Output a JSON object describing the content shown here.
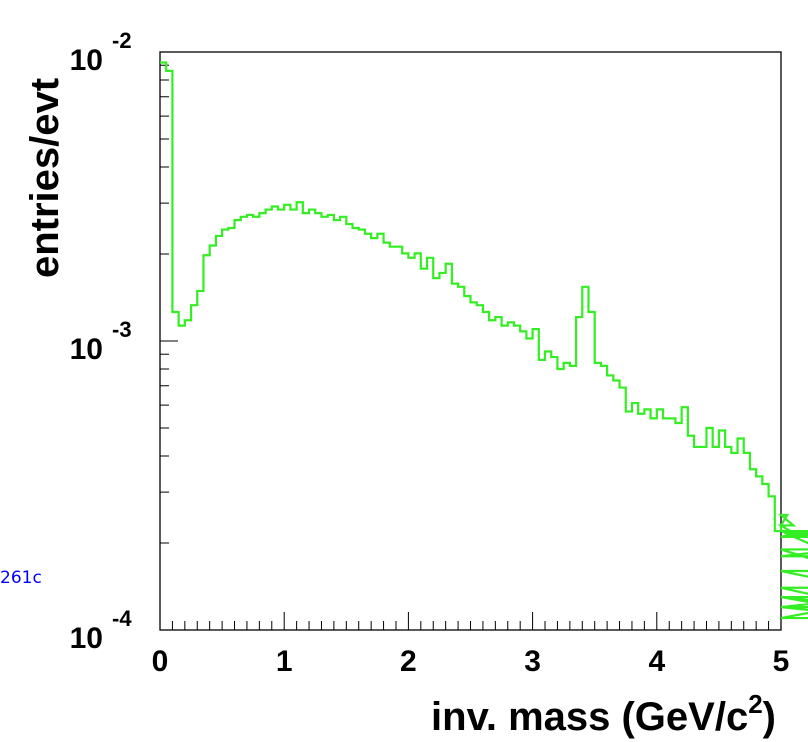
{
  "chart_data": {
    "type": "line",
    "style": "step-histogram",
    "xlabel": "inv. mass (GeV/c",
    "xlabel_superscript": "2",
    "xlabel_close": ")",
    "ylabel": "entries/evt",
    "xlim": [
      0,
      5
    ],
    "ylim": [
      0.0001,
      0.01
    ],
    "y_scale": "log",
    "grid": false,
    "line_color": "#33ee22",
    "x_ticks": [
      {
        "label": "0",
        "value": 0
      },
      {
        "label": "1",
        "value": 1
      },
      {
        "label": "2",
        "value": 2
      },
      {
        "label": "3",
        "value": 3
      },
      {
        "label": "4",
        "value": 4
      },
      {
        "label": "5",
        "value": 5
      }
    ],
    "y_ticks": [
      {
        "base": "10",
        "exp": "-4",
        "value": 0.0001
      },
      {
        "base": "10",
        "exp": "-3",
        "value": 0.001
      },
      {
        "base": "10",
        "exp": "-2",
        "value": 0.01
      }
    ],
    "bin_width": 0.05,
    "series": [
      {
        "values": [
          0.0092,
          0.0086,
          0.00126,
          0.00113,
          0.00118,
          0.00133,
          0.00149,
          0.00198,
          0.00214,
          0.00231,
          0.00243,
          0.00246,
          0.00262,
          0.00269,
          0.00273,
          0.00269,
          0.00277,
          0.00285,
          0.00292,
          0.00285,
          0.00296,
          0.00285,
          0.00302,
          0.00277,
          0.00285,
          0.00277,
          0.00269,
          0.00273,
          0.00262,
          0.00269,
          0.00254,
          0.00246,
          0.00243,
          0.00235,
          0.00227,
          0.00235,
          0.00219,
          0.00212,
          0.00212,
          0.00201,
          0.00194,
          0.00201,
          0.00178,
          0.00194,
          0.00165,
          0.00172,
          0.00185,
          0.00158,
          0.00154,
          0.00143,
          0.00136,
          0.00133,
          0.00126,
          0.00118,
          0.00121,
          0.00113,
          0.00116,
          0.00113,
          0.00108,
          0.00102,
          0.0011,
          0.00086,
          0.00092,
          0.00088,
          0.0008,
          0.00084,
          0.00082,
          0.00121,
          0.00154,
          0.00126,
          0.00084,
          0.00082,
          0.00076,
          0.00073,
          0.00069,
          0.00057,
          0.00061,
          0.00056,
          0.00058,
          0.00054,
          0.00058,
          0.00054,
          0.00054,
          0.00052,
          0.00059,
          0.00047,
          0.00043,
          0.00043,
          0.0005,
          0.00043,
          0.00049,
          0.00043,
          0.00041,
          0.00046,
          0.00041,
          0.00036,
          0.00034,
          0.00032,
          0.00029,
          0.00022,
          0.00023,
          0.00025,
          0.00023,
          0.00021,
          0.00022,
          0.00021,
          0.00022,
          0.00021,
          0.00022,
          0.00018,
          0.00019,
          0.00016,
          0.00016,
          0.00014,
          0.00012,
          0.00013,
          0.00012,
          0.00011,
          0.00013,
          0.00011,
          0.00011
        ]
      }
    ]
  },
  "side_label": "261c"
}
